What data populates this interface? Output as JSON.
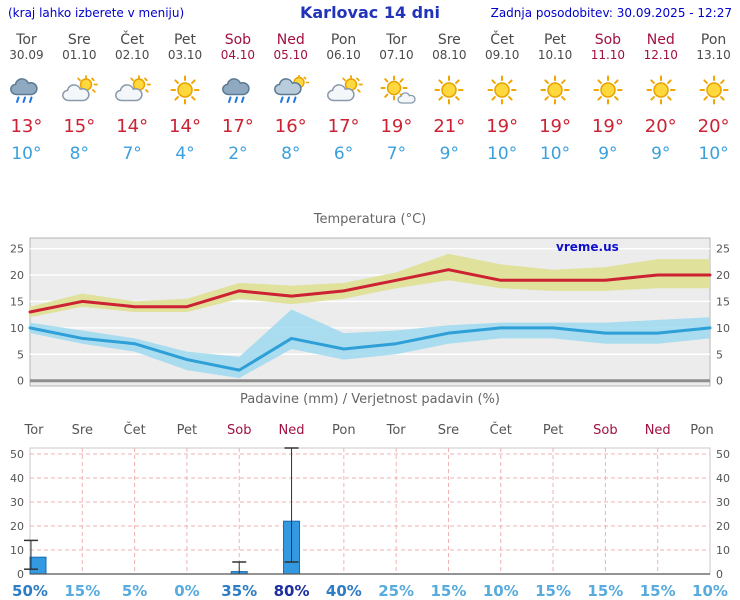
{
  "header": {
    "left_note": "(kraj lahko izberete v meniju)",
    "title": "Karlovac 14 dni",
    "updated": "Zadnja posodobitev: 30.09.2025 - 12:27"
  },
  "watermark": "vreme.us",
  "forecast": {
    "days": [
      {
        "name": "Tor",
        "date": "30.09",
        "weekend": false,
        "icon": "rain",
        "high": "13°",
        "low": "10°"
      },
      {
        "name": "Sre",
        "date": "01.10",
        "weekend": false,
        "icon": "partly",
        "high": "15°",
        "low": "8°"
      },
      {
        "name": "Čet",
        "date": "02.10",
        "weekend": false,
        "icon": "partly",
        "high": "14°",
        "low": "7°"
      },
      {
        "name": "Pet",
        "date": "03.10",
        "weekend": false,
        "icon": "sun",
        "high": "14°",
        "low": "4°"
      },
      {
        "name": "Sob",
        "date": "04.10",
        "weekend": true,
        "icon": "rain",
        "high": "17°",
        "low": "2°"
      },
      {
        "name": "Ned",
        "date": "05.10",
        "weekend": true,
        "icon": "sun-rain",
        "high": "16°",
        "low": "8°"
      },
      {
        "name": "Pon",
        "date": "06.10",
        "weekend": false,
        "icon": "partly",
        "high": "17°",
        "low": "6°"
      },
      {
        "name": "Tor",
        "date": "07.10",
        "weekend": false,
        "icon": "sun-cloud",
        "high": "19°",
        "low": "7°"
      },
      {
        "name": "Sre",
        "date": "08.10",
        "weekend": false,
        "icon": "sun",
        "high": "21°",
        "low": "9°"
      },
      {
        "name": "Čet",
        "date": "09.10",
        "weekend": false,
        "icon": "sun",
        "high": "19°",
        "low": "10°"
      },
      {
        "name": "Pet",
        "date": "10.10",
        "weekend": false,
        "icon": "sun",
        "high": "19°",
        "low": "10°"
      },
      {
        "name": "Sob",
        "date": "11.10",
        "weekend": true,
        "icon": "sun",
        "high": "19°",
        "low": "9°"
      },
      {
        "name": "Ned",
        "date": "12.10",
        "weekend": true,
        "icon": "sun",
        "high": "20°",
        "low": "9°"
      },
      {
        "name": "Pon",
        "date": "13.10",
        "weekend": false,
        "icon": "sun",
        "high": "20°",
        "low": "10°"
      }
    ]
  },
  "chart_data": [
    {
      "type": "line",
      "title": "Temperatura (°C)",
      "x_labels": [
        "Tor 30.09",
        "Sre 01.10",
        "Čet 02.10",
        "Pet 03.10",
        "Sob 04.10",
        "Ned 05.10",
        "Pon 06.10",
        "Tor 07.10",
        "Sre 08.10",
        "Čet 09.10",
        "Pet 10.10",
        "Sob 11.10",
        "Ned 12.10",
        "Pon 13.10"
      ],
      "ylim": [
        -1,
        27
      ],
      "yticks": [
        0,
        5,
        10,
        15,
        20,
        25
      ],
      "grid": true,
      "legend": "none",
      "series": [
        {
          "name": "max_temp",
          "values": [
            13,
            15,
            14,
            14,
            17,
            16,
            17,
            19,
            21,
            19,
            19,
            19,
            20,
            20
          ]
        },
        {
          "name": "min_temp",
          "values": [
            10,
            8,
            7,
            4,
            2,
            8,
            6,
            7,
            9,
            10,
            10,
            9,
            9,
            10
          ]
        },
        {
          "name": "max_band_upper",
          "values": [
            14,
            16.5,
            15,
            15.5,
            18.5,
            18,
            18.5,
            20.5,
            24,
            22,
            21,
            21.5,
            23,
            23
          ]
        },
        {
          "name": "max_band_lower",
          "values": [
            12,
            14,
            13,
            13,
            15.5,
            14.5,
            15.5,
            17.5,
            19,
            17.5,
            17,
            17,
            17.5,
            17.5
          ]
        },
        {
          "name": "min_band_upper",
          "values": [
            11,
            9.5,
            8,
            5.5,
            4.5,
            13.5,
            9,
            9.5,
            10.5,
            11,
            11,
            11,
            11.5,
            12
          ]
        },
        {
          "name": "min_band_lower",
          "values": [
            9,
            7,
            5.5,
            2,
            0.5,
            6,
            4,
            5,
            7,
            8,
            8,
            7,
            7,
            8
          ]
        }
      ],
      "colors": {
        "bg": "#ececec",
        "grid": "#ffffff",
        "zero_line": "#8f8f8f",
        "max_line": "#cc2233",
        "max_band": "#dfe096",
        "min_line": "#2f9fd8",
        "min_band": "#9fd9f0"
      }
    },
    {
      "type": "bar",
      "title": "Padavine (mm) / Verjetnost padavin (%)",
      "categories": [
        "Tor",
        "Sre",
        "Čet",
        "Pet",
        "Sob",
        "Ned",
        "Pon",
        "Tor",
        "Sre",
        "Čet",
        "Pet",
        "Sob",
        "Ned",
        "Pon"
      ],
      "weekend_flags": [
        false,
        false,
        false,
        false,
        true,
        true,
        false,
        false,
        false,
        false,
        false,
        true,
        true,
        false
      ],
      "values": [
        7,
        0,
        0,
        0,
        1,
        22,
        0,
        0,
        0,
        0,
        0,
        0,
        0,
        0
      ],
      "whisker_low": [
        2,
        0,
        0,
        0,
        0,
        5,
        0,
        0,
        0,
        0,
        0,
        0,
        0,
        0
      ],
      "whisker_high": [
        14,
        0,
        0,
        0,
        5,
        55,
        0,
        0,
        0,
        0,
        0,
        0,
        0,
        0
      ],
      "probabilities": [
        50,
        15,
        5,
        0,
        35,
        80,
        40,
        25,
        15,
        10,
        15,
        15,
        15,
        10
      ],
      "yticks": [
        0,
        10,
        20,
        30,
        40,
        50
      ],
      "ylim": [
        0,
        52.5
      ],
      "colors": {
        "bar": "#3399e0",
        "bar_border": "#1a6ab0",
        "grid": "#f0b0b0",
        "whisker": "#333333",
        "prob_high": "#1b2f9e",
        "prob_mid": "#2d7dc4",
        "prob_low": "#58abdd",
        "weekday": "#555555",
        "weekend": "#a01040"
      }
    }
  ]
}
